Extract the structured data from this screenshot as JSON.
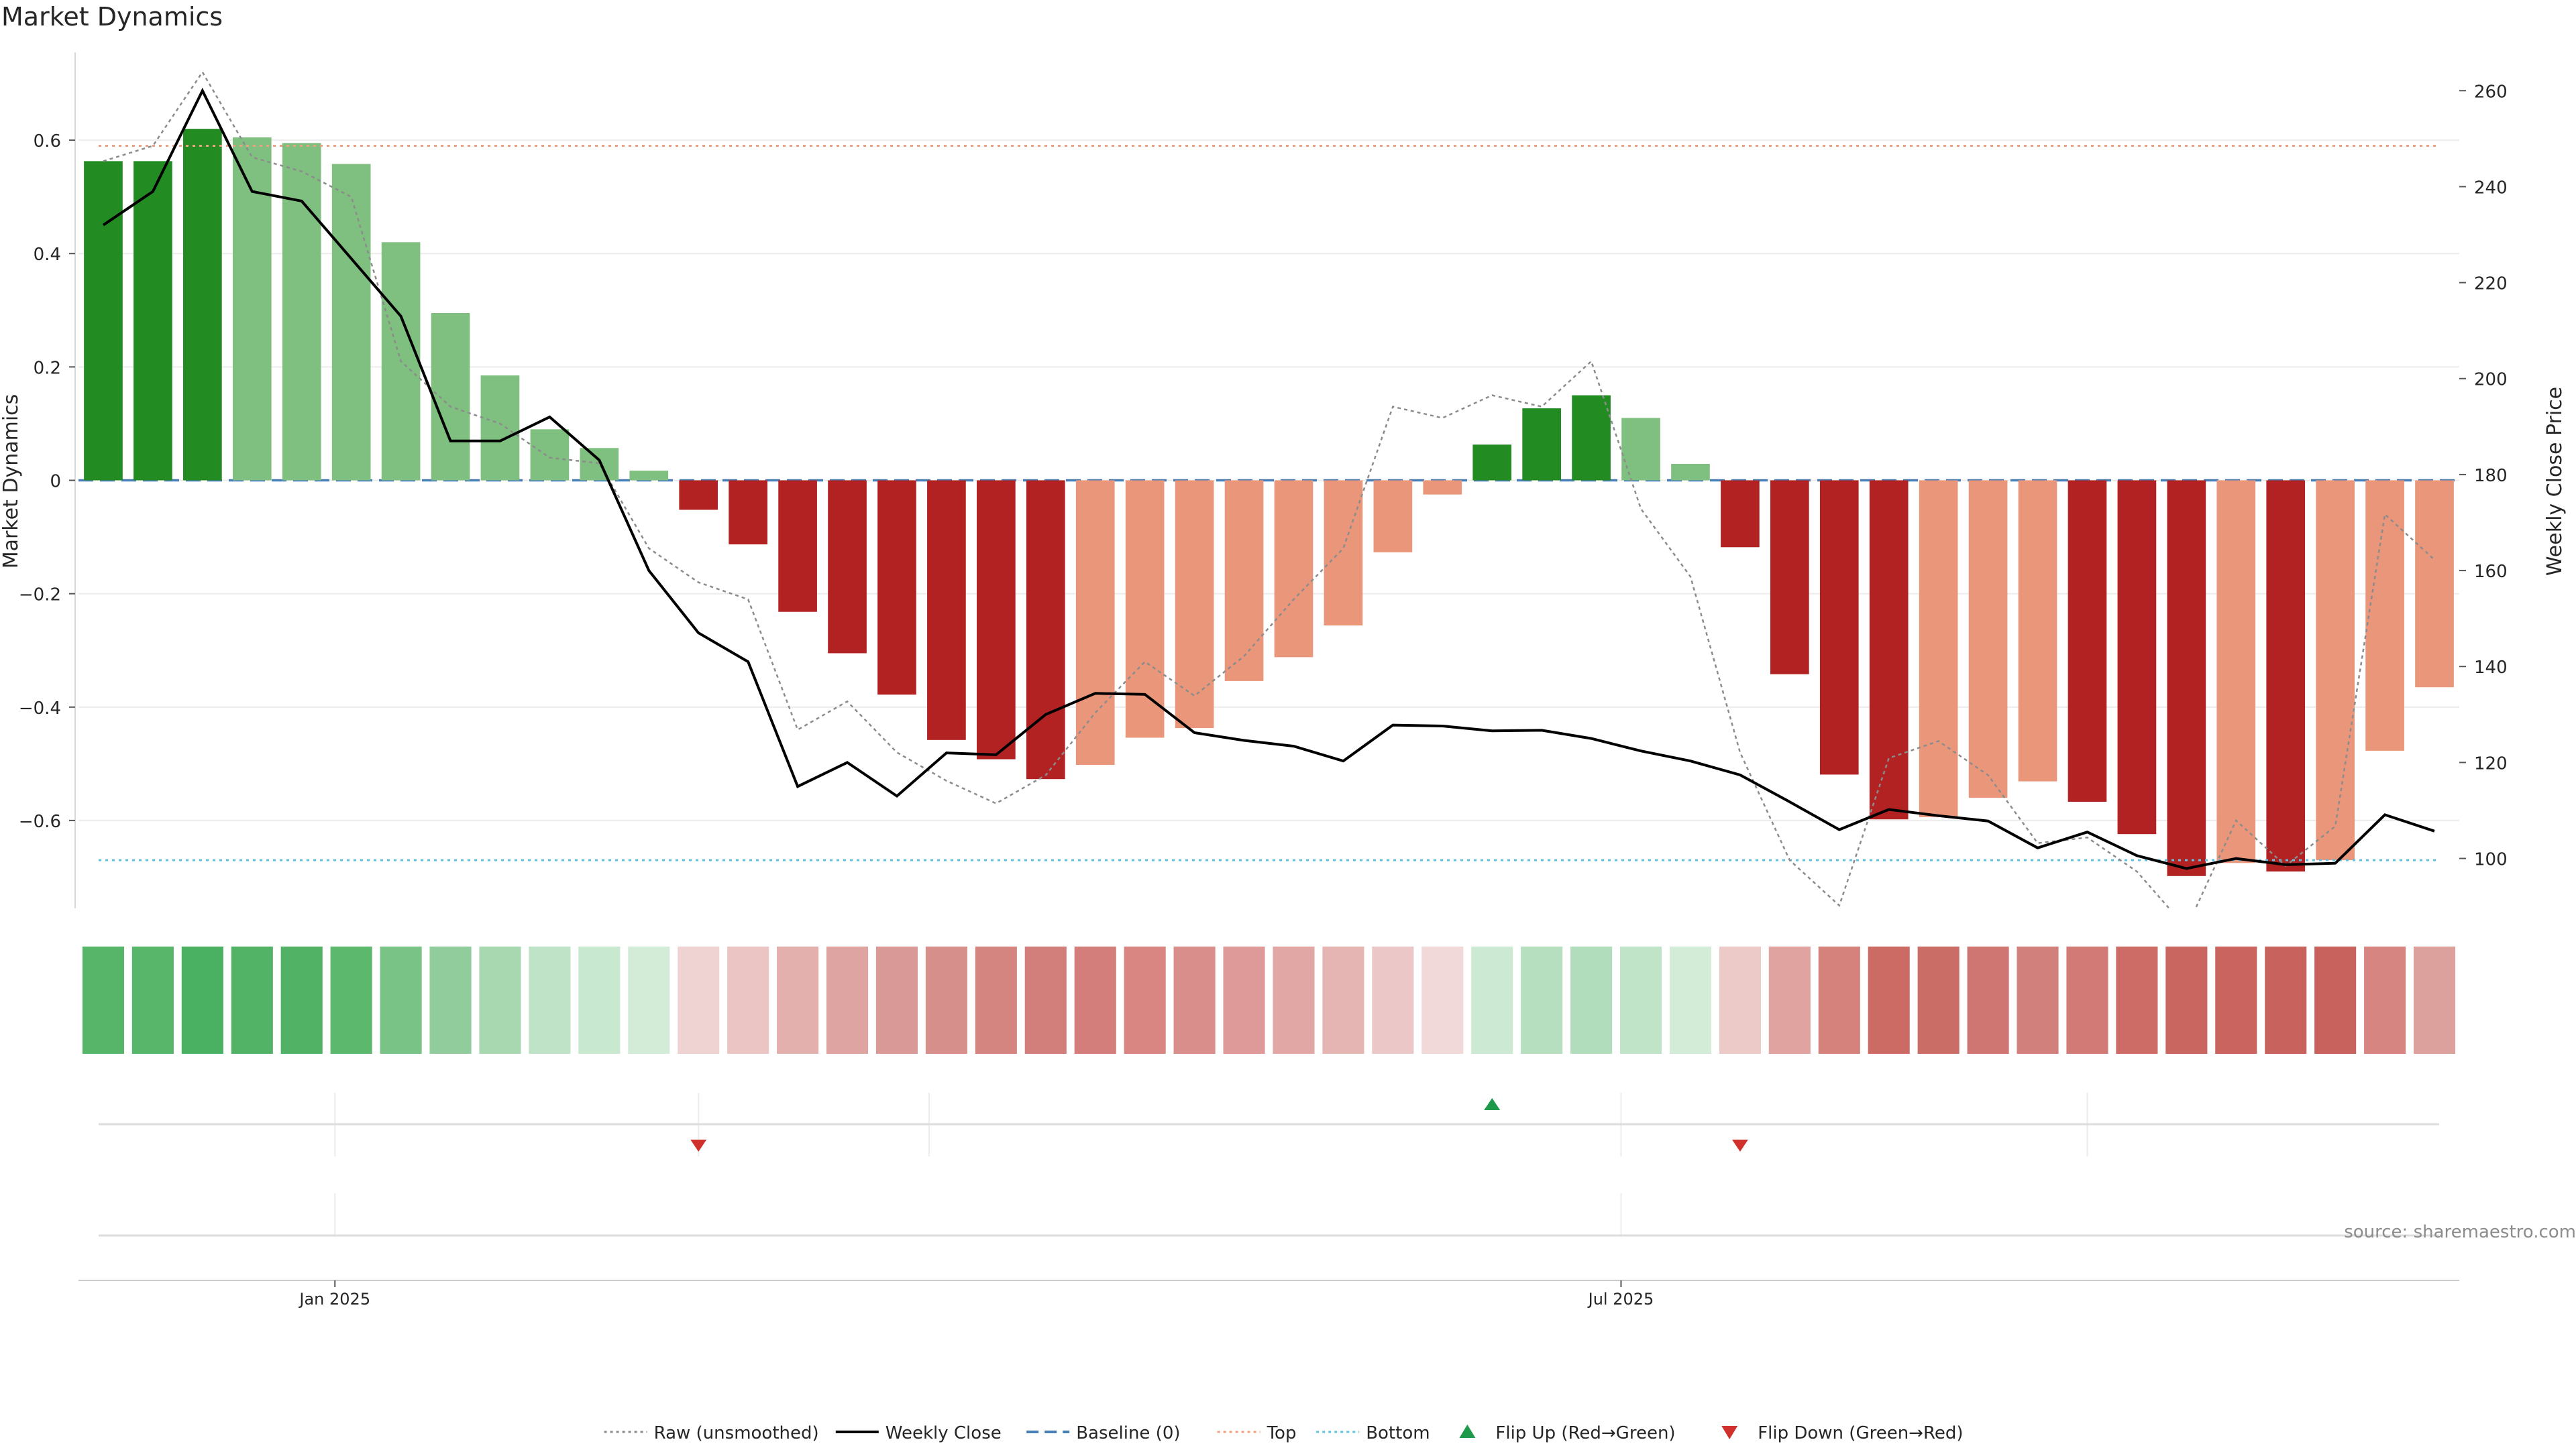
{
  "chart_data": {
    "type": "bar",
    "title": "Market Dynamics",
    "ylabel_left": "Market Dynamics",
    "ylabel_right": "Weekly Close Price",
    "source_text": "source: sharemaestro.com",
    "x_tick_labels": [
      {
        "label": "Jan 2025",
        "week_index": 4.67
      },
      {
        "label": "Jul 2025",
        "week_index": 30.6
      }
    ],
    "left_axis": {
      "ylim": [
        -0.755,
        0.755
      ],
      "ticks": [
        -0.6,
        -0.4,
        -0.2,
        0,
        0.2,
        0.4,
        0.6
      ],
      "tick_labels": [
        "−0.6",
        "−0.4",
        "−0.2",
        "0",
        "0.2",
        "0.4",
        "0.6"
      ]
    },
    "right_axis": {
      "ylim": [
        89.6,
        268
      ],
      "ticks": [
        100,
        120,
        140,
        160,
        180,
        200,
        220,
        240,
        260
      ],
      "tick_labels": [
        "100",
        "120",
        "140",
        "160",
        "180",
        "200",
        "220",
        "240",
        "260"
      ]
    },
    "weeks": 48,
    "bar_values": [
      0.563,
      0.563,
      0.62,
      0.605,
      0.595,
      0.558,
      0.42,
      0.295,
      0.185,
      0.09,
      0.057,
      0.017,
      -0.052,
      -0.113,
      -0.232,
      -0.305,
      -0.378,
      -0.458,
      -0.492,
      -0.527,
      -0.502,
      -0.454,
      -0.437,
      -0.354,
      -0.312,
      -0.256,
      -0.127,
      -0.025,
      0.063,
      0.127,
      0.15,
      0.11,
      0.029,
      -0.118,
      -0.342,
      -0.519,
      -0.598,
      -0.594,
      -0.56,
      -0.531,
      -0.567,
      -0.624,
      -0.698,
      -0.675,
      -0.69,
      -0.67,
      -0.477,
      -0.365
    ],
    "bar_states": [
      "strong_up",
      "strong_up",
      "strong_up",
      "weak_up",
      "weak_up",
      "weak_up",
      "weak_up",
      "weak_up",
      "weak_up",
      "weak_up",
      "weak_up",
      "weak_up",
      "strong_down",
      "strong_down",
      "strong_down",
      "strong_down",
      "strong_down",
      "strong_down",
      "strong_down",
      "strong_down",
      "weak_down",
      "weak_down",
      "weak_down",
      "weak_down",
      "weak_down",
      "weak_down",
      "weak_down",
      "weak_down",
      "strong_up",
      "strong_up",
      "strong_up",
      "weak_up",
      "weak_up",
      "strong_down",
      "strong_down",
      "strong_down",
      "strong_down",
      "weak_down",
      "weak_down",
      "weak_down",
      "strong_down",
      "strong_down",
      "strong_down",
      "weak_down",
      "strong_down",
      "weak_down",
      "weak_down",
      "weak_down"
    ],
    "raw_unsmoothed": [
      0.563,
      0.59,
      0.72,
      0.57,
      0.545,
      0.5,
      0.21,
      0.13,
      0.1,
      0.04,
      0.03,
      -0.12,
      -0.18,
      -0.21,
      -0.44,
      -0.39,
      -0.48,
      -0.53,
      -0.57,
      -0.52,
      -0.41,
      -0.32,
      -0.38,
      -0.31,
      -0.21,
      -0.12,
      0.13,
      0.11,
      0.15,
      0.13,
      0.21,
      -0.05,
      -0.17,
      -0.48,
      -0.67,
      -0.75,
      -0.49,
      -0.46,
      -0.52,
      -0.64,
      -0.63,
      -0.69,
      -0.79,
      -0.6,
      -0.68,
      -0.61,
      -0.06,
      -0.14
    ],
    "weekly_close": [
      232,
      239,
      260,
      239,
      237,
      225,
      213,
      187,
      187,
      192,
      183,
      160,
      147,
      141,
      115,
      120,
      113,
      122,
      121.6,
      130,
      134.4,
      134.2,
      126.2,
      124.6,
      123.4,
      120.3,
      127.8,
      127.6,
      126.6,
      126.7,
      125,
      122.4,
      120.3,
      117.4,
      111.8,
      106,
      110.2,
      108.9,
      107.8,
      102.2,
      105.5,
      100.6,
      97.9,
      100,
      98.7,
      99,
      109.1,
      105.7
    ],
    "baseline": 0,
    "top_level": 0.59,
    "bottom_level": -0.67,
    "heat_strip_colors": [
      "#57b56a",
      "#58b66a",
      "#4ab062",
      "#52b366",
      "#51b266",
      "#5bb86d",
      "#79c386",
      "#91cd9c",
      "#a7d8b0",
      "#bfe3c7",
      "#c8e8cf",
      "#d2ecd8",
      "#efd3d3",
      "#ebc5c4",
      "#e3b0ad",
      "#dea4a1",
      "#d99996",
      "#d68f8b",
      "#d4857f",
      "#d27f7b",
      "#d37e7b",
      "#d98582",
      "#da8e8b",
      "#dd9a98",
      "#e0a7a5",
      "#e5b5b3",
      "#ebc8c7",
      "#f1d9d9",
      "#cce9d3",
      "#b6dfc0",
      "#b2ddbc",
      "#bfe4c7",
      "#d2ecd8",
      "#eccac8",
      "#e0a3a0",
      "#d5827d",
      "#cc6a64",
      "#cb6d67",
      "#cf7672",
      "#d2807b",
      "#d27b76",
      "#cd6c66",
      "#c96660",
      "#c9645e",
      "#c7625c",
      "#c7625c",
      "#d68581",
      "#dca09d"
    ],
    "flips": [
      {
        "type": "down",
        "week_index": 12
      },
      {
        "type": "up",
        "week_index": 28
      },
      {
        "type": "down",
        "week_index": 33
      }
    ],
    "legend": [
      {
        "label": "Raw (unsmoothed)",
        "style": "dotted-line",
        "color": "#8c8c8c"
      },
      {
        "label": "Weekly Close",
        "style": "solid-line",
        "color": "#000000"
      },
      {
        "label": "Baseline (0)",
        "style": "dashed-line",
        "color": "#4a7fb5"
      },
      {
        "label": "Top",
        "style": "dotted-line",
        "color": "#f0a07e"
      },
      {
        "label": "Bottom",
        "style": "dotted-line",
        "color": "#5fc2e0"
      },
      {
        "label": "Flip Up (Red→Green)",
        "style": "triangle-up",
        "color": "#1e9a4a"
      },
      {
        "label": "Flip Down (Green→Red)",
        "style": "triangle-down",
        "color": "#d0312d"
      }
    ],
    "colors": {
      "strong_up": "#228b22",
      "weak_up": "#7fbf7f",
      "strong_down": "#b22222",
      "weak_down": "#e9967a",
      "flip_up": "#1e9a4a",
      "flip_down": "#d0312d",
      "close_line": "#000000",
      "raw_line": "#8c8c8c",
      "baseline": "#4a7fb5",
      "top": "#f0a07e",
      "bottom": "#5fc2e0"
    },
    "legend_position": "bottom-center",
    "grid": true
  }
}
